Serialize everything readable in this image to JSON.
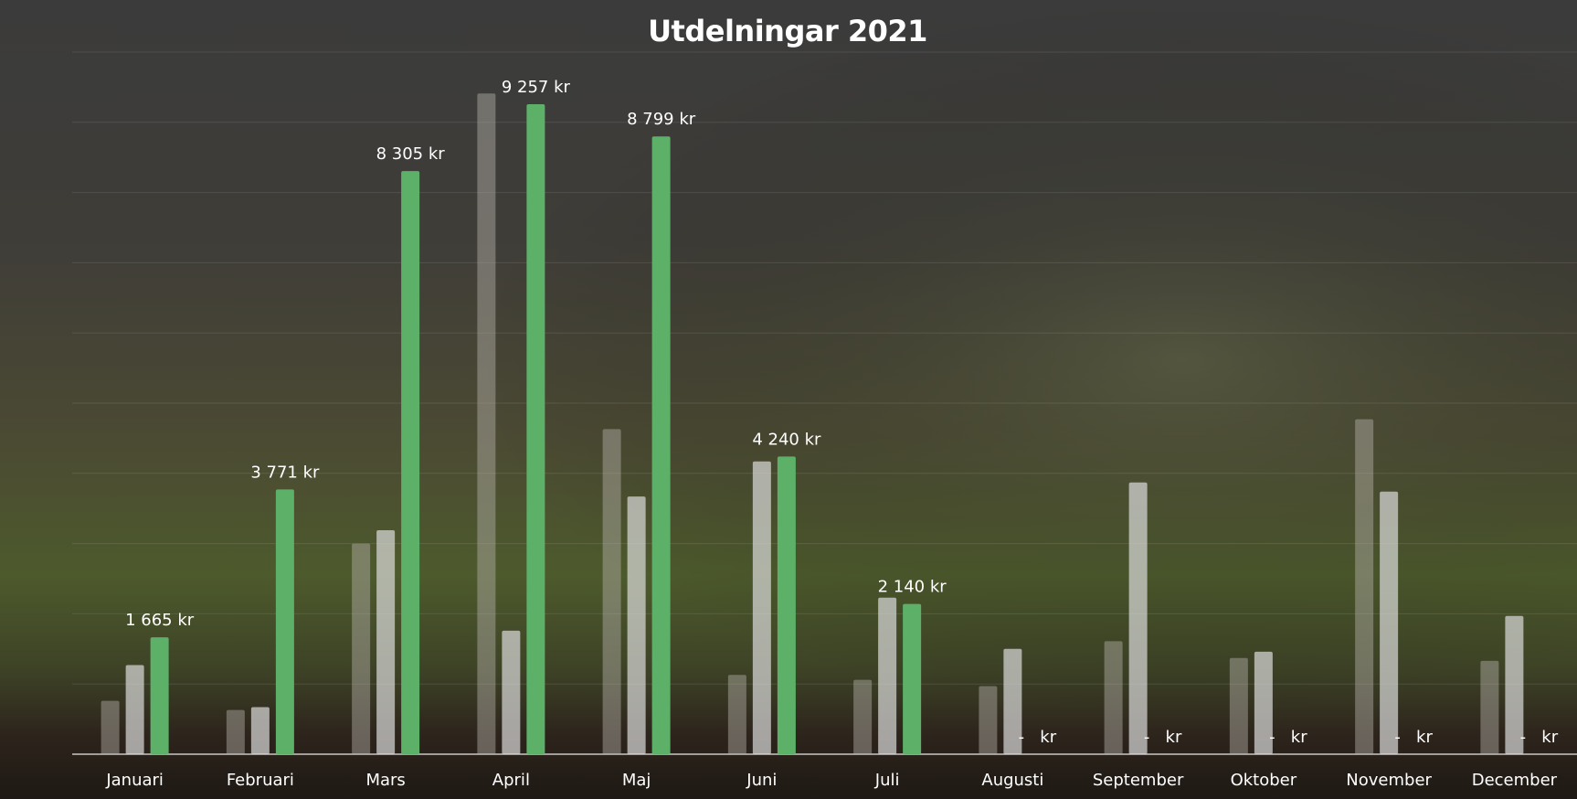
{
  "chart_data": {
    "type": "bar",
    "title": "Utdelningar 2021",
    "categories": [
      "Januari",
      "Februari",
      "Mars",
      "April",
      "Maj",
      "Juni",
      "Juli",
      "Augusti",
      "September",
      "Oktober",
      "November",
      "December"
    ],
    "series": [
      {
        "color": "#b5b1aa",
        "values": [
          760,
          630,
          3000,
          9410,
          4630,
          1130,
          1060,
          970,
          1610,
          1370,
          4770,
          1330
        ]
      },
      {
        "color": "#dcdcdc",
        "values": [
          1270,
          670,
          3190,
          1760,
          3670,
          4170,
          2230,
          1500,
          3870,
          1460,
          3740,
          1970
        ]
      },
      {
        "color": "#5cb068",
        "values": [
          1665,
          3771,
          8305,
          9257,
          8799,
          4240,
          2140,
          0,
          0,
          0,
          0,
          0
        ],
        "value_labels": [
          "1 665 kr",
          "3 771 kr",
          "8 305 kr",
          "9 257 kr",
          "8 799 kr",
          "4 240 kr",
          "2 140 kr",
          "-   kr",
          "-   kr",
          "-   kr",
          "-   kr",
          "-   kr"
        ]
      }
    ],
    "ylim": [
      0,
      10000
    ],
    "yticks": [
      0,
      1000,
      2000,
      3000,
      4000,
      5000,
      6000,
      7000,
      8000,
      9000,
      10000
    ],
    "grid": true
  }
}
